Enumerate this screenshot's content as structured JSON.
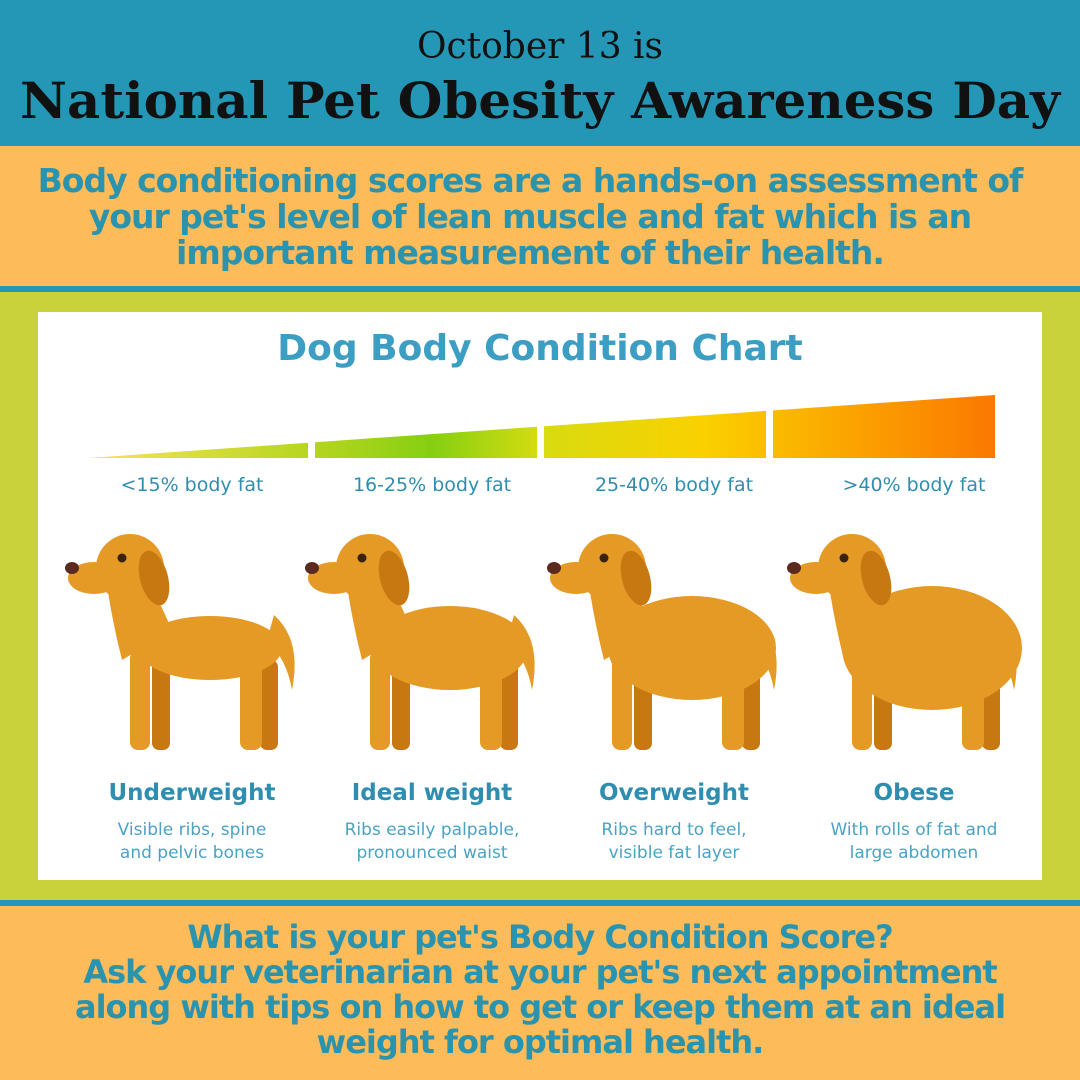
{
  "header": {
    "date": "October 13 is",
    "title": "National Pet Obesity Awareness Day"
  },
  "intro": {
    "lines": [
      "Body conditioning scores are a hands-on assessment of",
      "your pet's level of lean muscle and fat which is an",
      "important measurement of their health."
    ]
  },
  "chart": {
    "title": "Dog Body Condition Chart",
    "columns": [
      {
        "fat": "<15% body fat",
        "name": "Underweight",
        "description": [
          "Visible ribs, spine",
          "and pelvic bones"
        ]
      },
      {
        "fat": "16-25% body fat",
        "name": "Ideal weight",
        "description": [
          "Ribs easily palpable,",
          "pronounced waist"
        ]
      },
      {
        "fat": "25-40% body fat",
        "name": "Overweight",
        "description": [
          "Ribs hard to feel,",
          "visible fat layer"
        ]
      },
      {
        "fat": ">40% body fat",
        "name": "Obese",
        "description": [
          "With rolls of fat and",
          "large abdomen"
        ]
      }
    ]
  },
  "footer": {
    "lines": [
      "What is your pet's Body Condition Score?",
      "Ask your veterinarian at your pet's next appointment",
      "along with tips on how to get or keep them at an ideal",
      "weight for optimal health."
    ]
  }
}
